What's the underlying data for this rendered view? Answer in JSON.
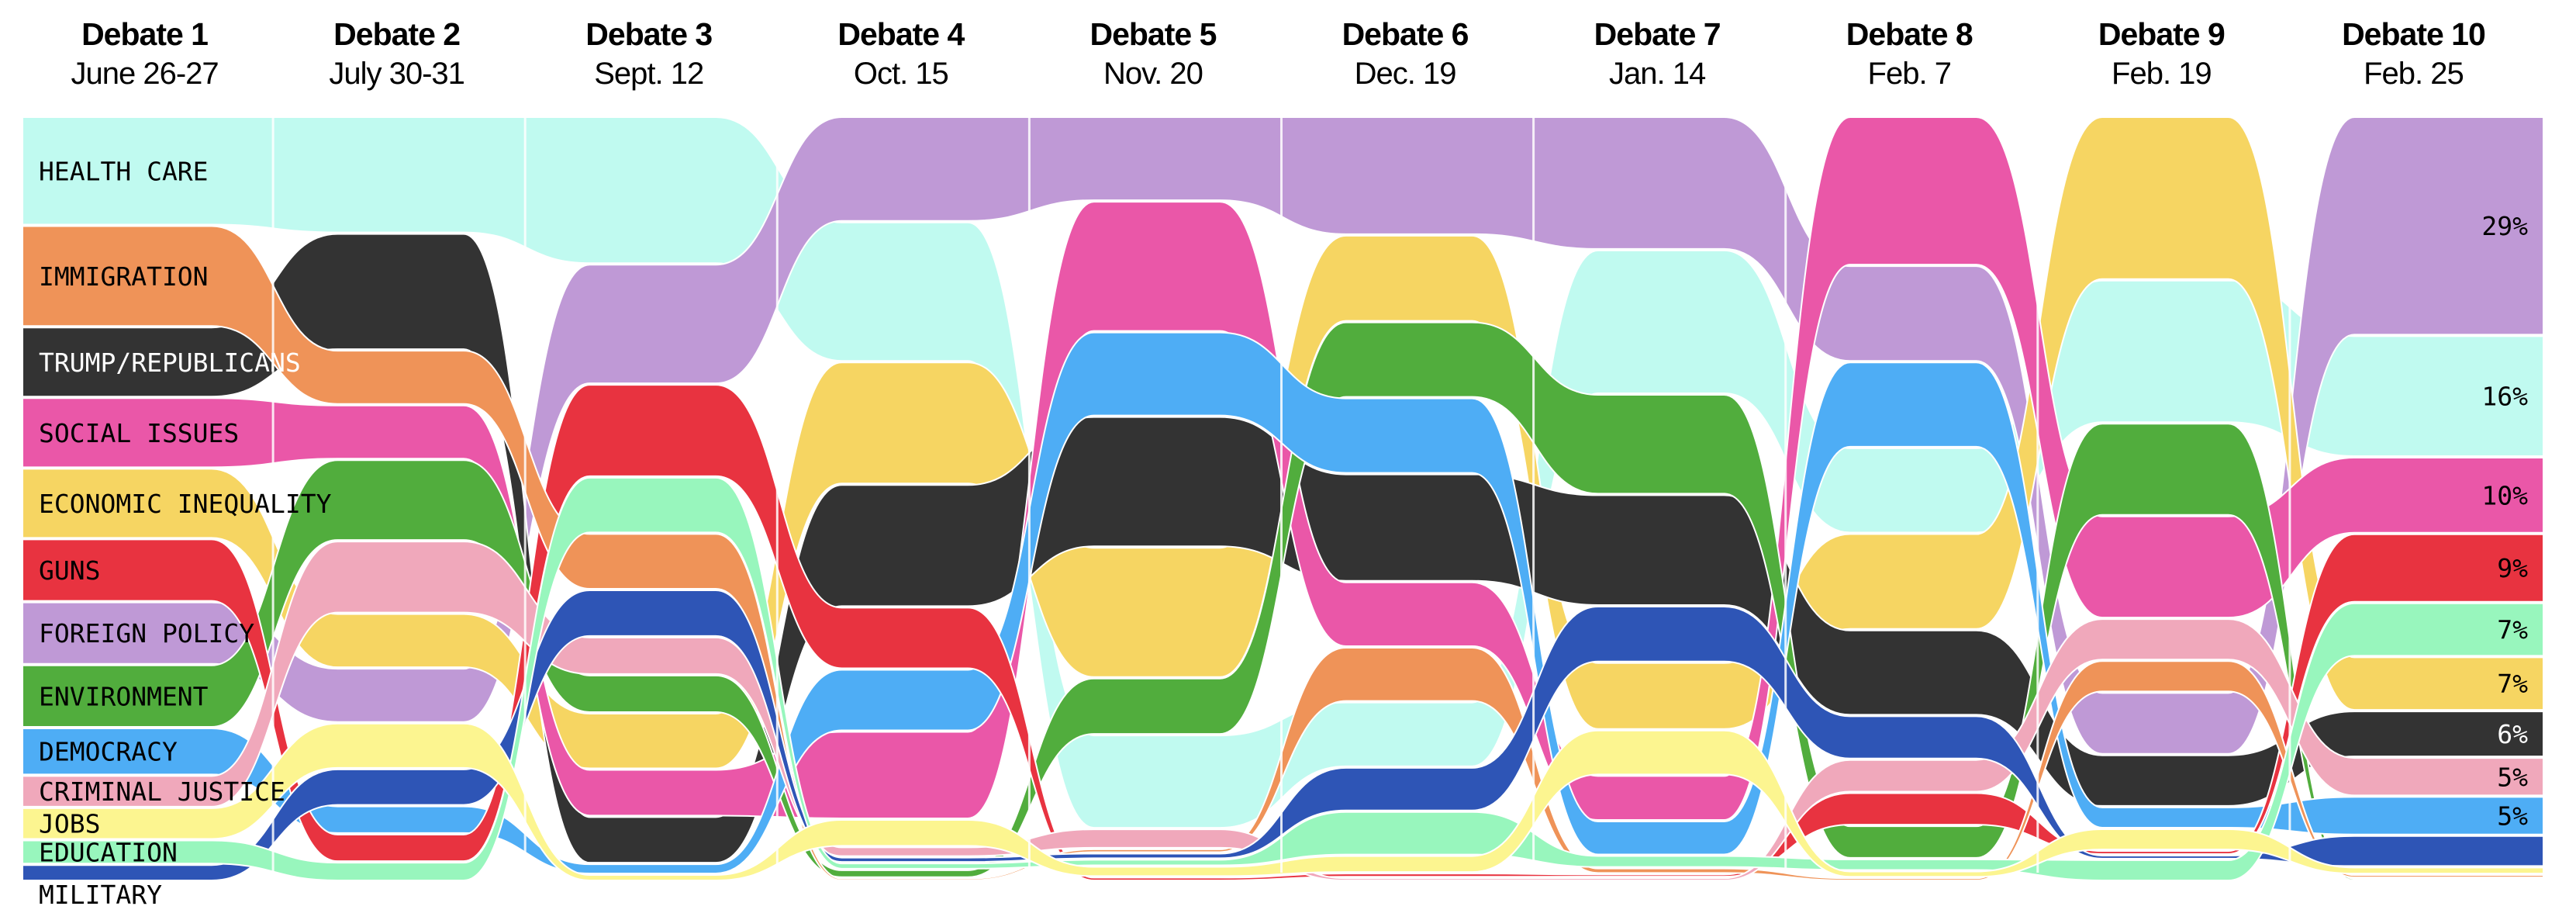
{
  "chart_data": {
    "type": "area",
    "title": "",
    "subtitle": "",
    "xlabel": "",
    "ylabel": "",
    "debates": [
      {
        "name": "Debate 1",
        "date": "June 26-27"
      },
      {
        "name": "Debate 2",
        "date": "July 30-31"
      },
      {
        "name": "Debate 3",
        "date": "Sept. 12"
      },
      {
        "name": "Debate 4",
        "date": "Oct. 15"
      },
      {
        "name": "Debate 5",
        "date": "Nov. 20"
      },
      {
        "name": "Debate 6",
        "date": "Dec. 19"
      },
      {
        "name": "Debate 7",
        "date": "Jan. 14"
      },
      {
        "name": "Debate 8",
        "date": "Feb. 7"
      },
      {
        "name": "Debate 9",
        "date": "Feb. 19"
      },
      {
        "name": "Debate 10",
        "date": "Feb. 25"
      }
    ],
    "series": [
      {
        "key": "health",
        "name": "HEALTH CARE",
        "color": "#c0faf0",
        "label_color": "#000000",
        "values": [
          14,
          13,
          16,
          16,
          10,
          6,
          13,
          8,
          14,
          16
        ],
        "final_label": "16%"
      },
      {
        "key": "immigration",
        "name": "IMMIGRATION",
        "color": "#ef9358",
        "label_color": "#000000",
        "values": [
          13,
          6,
          6,
          0.2,
          0.3,
          5,
          0.4,
          0.2,
          3,
          0.3
        ],
        "final_label": ""
      },
      {
        "key": "trump",
        "name": "TRUMP/REPUBLICANS",
        "color": "#333333",
        "label_color": "#ffffff",
        "values": [
          9,
          13,
          5,
          14,
          14,
          10,
          10,
          8,
          5,
          6
        ],
        "final_label": "6%"
      },
      {
        "key": "social",
        "name": "SOCIAL ISSUES",
        "color": "#ea57a8",
        "label_color": "#000000",
        "values": [
          9,
          6,
          5,
          10,
          14,
          6,
          4,
          14,
          10,
          10
        ],
        "final_label": "10%"
      },
      {
        "key": "econ",
        "name": "ECONOMIC INEQUALITY",
        "color": "#f6d562",
        "label_color": "#000000",
        "values": [
          9,
          6,
          6,
          14,
          14,
          8,
          6,
          9,
          16,
          7
        ],
        "final_label": "7%"
      },
      {
        "key": "guns",
        "name": "GUNS",
        "color": "#e83340",
        "label_color": "#000000",
        "values": [
          8,
          3,
          10,
          7,
          0.3,
          0.3,
          0.2,
          3,
          0.3,
          9
        ],
        "final_label": "9%"
      },
      {
        "key": "foreign",
        "name": "FOREIGN POLICY",
        "color": "#bf99d6",
        "label_color": "#000000",
        "values": [
          8,
          6,
          13,
          12,
          9,
          11,
          12,
          9,
          6,
          29
        ],
        "final_label": "29%"
      },
      {
        "key": "environment",
        "name": "ENVIRONMENT",
        "color": "#51ad3d",
        "label_color": "#000000",
        "values": [
          8,
          9,
          4,
          0.8,
          6,
          7,
          9,
          3,
          9,
          0.2
        ],
        "final_label": ""
      },
      {
        "key": "democracy",
        "name": "DEMOCRACY",
        "color": "#4eadf5",
        "label_color": "#000000",
        "values": [
          6,
          3,
          1,
          7,
          9,
          7,
          3,
          8,
          2,
          5
        ],
        "final_label": "5%"
      },
      {
        "key": "justice",
        "name": "CRIMINAL JUSTICE",
        "color": "#f0a8bb",
        "label_color": "#000000",
        "values": [
          4,
          8,
          4,
          1,
          2,
          0.2,
          0.2,
          3,
          4,
          5
        ],
        "final_label": "5%"
      },
      {
        "key": "jobs",
        "name": "JOBS",
        "color": "#fcf590",
        "label_color": "#000000",
        "values": [
          4,
          5,
          0.6,
          3,
          1,
          1.5,
          4,
          0.5,
          2,
          0.8
        ],
        "final_label": ""
      },
      {
        "key": "education",
        "name": "EDUCATION",
        "color": "#98f6bd",
        "label_color": "#000000",
        "values": [
          3,
          2,
          6,
          0.6,
          0.6,
          4,
          1,
          1,
          2,
          7
        ],
        "final_label": "7%"
      },
      {
        "key": "military",
        "name": "MILITARY",
        "color": "#2e55b6",
        "label_color": "#000000",
        "values": [
          2,
          4,
          5,
          0.5,
          0.5,
          4,
          5,
          4,
          0.3,
          4
        ],
        "final_label": ""
      }
    ],
    "order": [
      [
        "health",
        "immigration",
        "trump",
        "social",
        "econ",
        "guns",
        "foreign",
        "environment",
        "democracy",
        "justice",
        "jobs",
        "education",
        "military"
      ],
      [
        "health",
        "trump",
        "immigration",
        "social",
        "environment",
        "justice",
        "econ",
        "foreign",
        "jobs",
        "military",
        "democracy",
        "guns",
        "education"
      ],
      [
        "health",
        "foreign",
        "guns",
        "education",
        "immigration",
        "military",
        "justice",
        "environment",
        "econ",
        "social",
        "trump",
        "democracy",
        "jobs"
      ],
      [
        "foreign",
        "health",
        "econ",
        "trump",
        "guns",
        "democracy",
        "social",
        "jobs",
        "justice",
        "military",
        "education",
        "environment",
        "immigration"
      ],
      [
        "foreign",
        "social",
        "democracy",
        "trump",
        "econ",
        "environment",
        "health",
        "justice",
        "immigration",
        "military",
        "education",
        "jobs",
        "guns"
      ],
      [
        "foreign",
        "econ",
        "environment",
        "democracy",
        "trump",
        "social",
        "immigration",
        "health",
        "military",
        "education",
        "jobs",
        "guns",
        "justice"
      ],
      [
        "foreign",
        "health",
        "environment",
        "trump",
        "military",
        "econ",
        "jobs",
        "social",
        "democracy",
        "education",
        "immigration",
        "guns",
        "justice"
      ],
      [
        "social",
        "foreign",
        "democracy",
        "health",
        "econ",
        "trump",
        "military",
        "justice",
        "guns",
        "environment",
        "education",
        "jobs",
        "immigration"
      ],
      [
        "econ",
        "health",
        "environment",
        "social",
        "justice",
        "immigration",
        "foreign",
        "trump",
        "democracy",
        "jobs",
        "guns",
        "military",
        "education"
      ],
      [
        "foreign",
        "health",
        "social",
        "guns",
        "education",
        "econ",
        "trump",
        "justice",
        "democracy",
        "military",
        "jobs",
        "immigration",
        "environment"
      ]
    ],
    "legend": "left"
  }
}
